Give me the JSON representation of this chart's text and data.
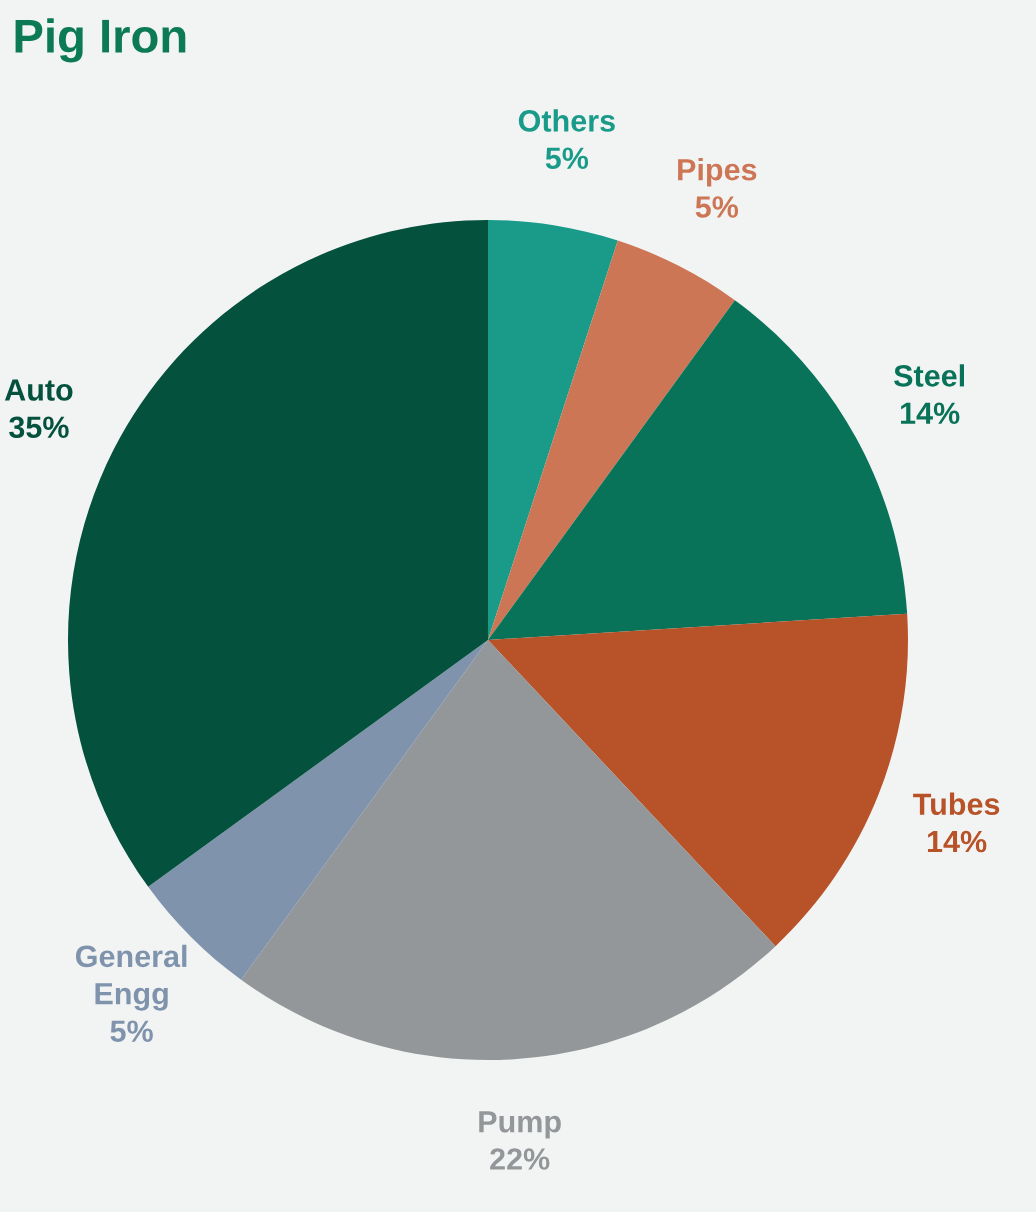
{
  "chart_data": {
    "type": "pie",
    "title": "Pig Iron",
    "categories": [
      "Others",
      "Pipes",
      "Steel",
      "Tubes",
      "Pump",
      "General\nEngg",
      "Auto"
    ],
    "values": [
      5,
      5,
      14,
      14,
      22,
      5,
      35
    ],
    "value_labels": [
      "5%",
      "5%",
      "14%",
      "14%",
      "22%",
      "5%",
      "35%"
    ],
    "colors": [
      "#1a9b8a",
      "#cd7655",
      "#087358",
      "#b85228",
      "#94979a",
      "#7f93ad",
      "#04513d"
    ]
  }
}
